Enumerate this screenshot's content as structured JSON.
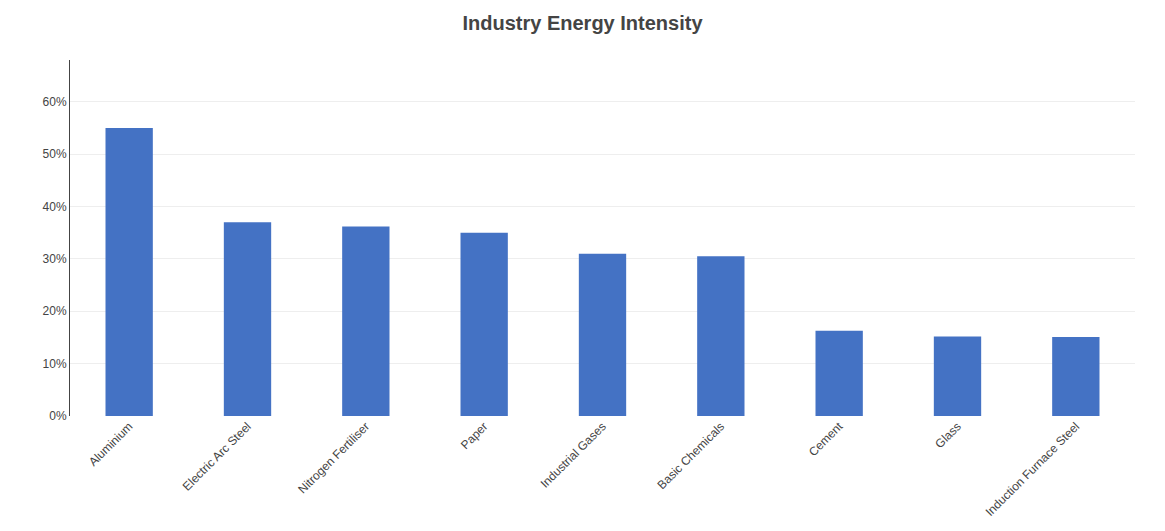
{
  "chart_data": {
    "type": "bar",
    "title": "Industry Energy Intensity",
    "categories": [
      "Aluminium",
      "Electric Arc Steel",
      "Nitrogen Fertiliser",
      "Paper",
      "Industrial Gases",
      "Basic Chemicals",
      "Cement",
      "Glass",
      "Induction Furnace Steel"
    ],
    "values": [
      0.55,
      0.37,
      0.362,
      0.35,
      0.31,
      0.305,
      0.163,
      0.152,
      0.151
    ],
    "color": "#4472C4",
    "ylim": [
      0,
      0.68
    ],
    "yticks": [
      {
        "value": 0.0,
        "label": "0%"
      },
      {
        "value": 0.1,
        "label": "10%"
      },
      {
        "value": 0.2,
        "label": "20%"
      },
      {
        "value": 0.3,
        "label": "30%"
      },
      {
        "value": 0.4,
        "label": "40%"
      },
      {
        "value": 0.5,
        "label": "50%"
      },
      {
        "value": 0.6,
        "label": "60%"
      }
    ],
    "grid": true
  }
}
